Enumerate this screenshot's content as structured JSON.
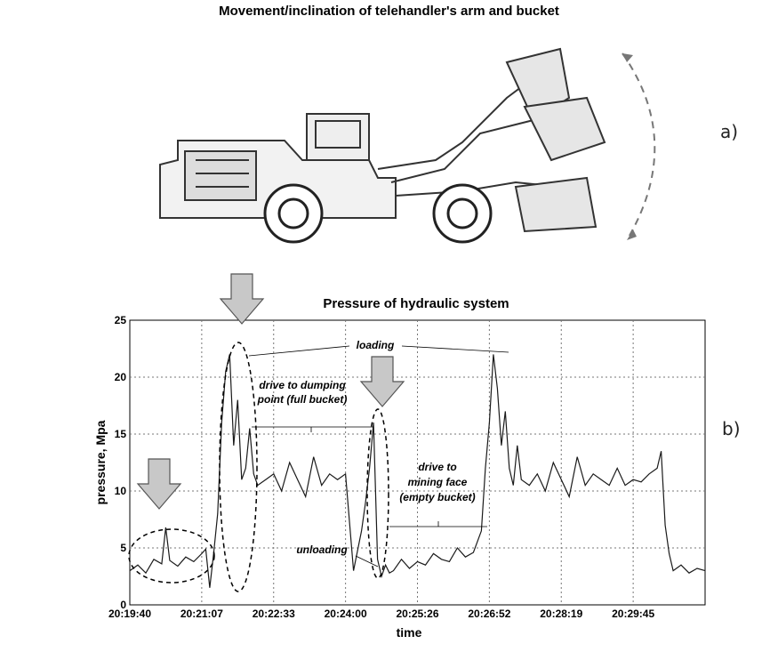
{
  "figure": {
    "top_title": "Movement/inclination of telehandler's arm and bucket",
    "panel_a": "a)",
    "panel_b": "b)"
  },
  "icons": {
    "vehicle": "underground-loader-drawing",
    "arrows": "down-arrow-icon",
    "highlights": "dashed-ellipse"
  },
  "chart_data": {
    "type": "line",
    "title": "Pressure of hydraulic system",
    "xlabel": "time",
    "ylabel": "pressure, Mpa",
    "ylim": [
      0,
      25
    ],
    "yticks": [
      "0",
      "5",
      "10",
      "15",
      "20",
      "25"
    ],
    "xticks": [
      "20:19:40",
      "20:21:07",
      "20:22:33",
      "20:24:00",
      "20:25:26",
      "20:26:52",
      "20:28:19",
      "20:29:45"
    ],
    "xlim_seconds": [
      0,
      720
    ],
    "grid": true,
    "annotations": {
      "loading": "loading",
      "drive_full_1": "drive to dumping",
      "drive_full_2": "point (full bucket)",
      "drive_empty_1": "drive to",
      "drive_empty_2": "mining face",
      "drive_empty_3": "(empty bucket)",
      "unloading": "unloading"
    },
    "series": [
      {
        "color": "#1a1a1a",
        "x": [
          0,
          10,
          20,
          30,
          40,
          45,
          50,
          60,
          70,
          80,
          90,
          95,
          100,
          105,
          110,
          115,
          120,
          125,
          130,
          135,
          140,
          145,
          150,
          155,
          160,
          170,
          180,
          190,
          200,
          210,
          220,
          230,
          240,
          250,
          260,
          270,
          280,
          290,
          295,
          300,
          305,
          310,
          315,
          320,
          325,
          330,
          340,
          350,
          360,
          370,
          380,
          390,
          400,
          410,
          420,
          430,
          440,
          445,
          450,
          455,
          460,
          465,
          470,
          475,
          480,
          485,
          490,
          500,
          510,
          520,
          530,
          540,
          550,
          560,
          570,
          580,
          590,
          600,
          610,
          620,
          630,
          640,
          650,
          660,
          665,
          670,
          675,
          680,
          690,
          700,
          710,
          720
        ],
        "y": [
          3.0,
          3.5,
          2.8,
          4.0,
          3.6,
          6.8,
          3.9,
          3.4,
          4.2,
          3.8,
          4.5,
          4.9,
          1.5,
          4.6,
          8.0,
          16.0,
          20.5,
          22.0,
          14.0,
          18.0,
          11.0,
          12.0,
          15.5,
          11.5,
          10.5,
          11.0,
          11.5,
          10.0,
          12.5,
          11.0,
          9.5,
          13.0,
          10.5,
          11.5,
          11.0,
          11.5,
          3.0,
          6.5,
          9.0,
          12.0,
          16.0,
          4.0,
          2.5,
          3.5,
          2.8,
          3.0,
          4.0,
          3.2,
          3.8,
          3.5,
          4.5,
          4.0,
          3.8,
          5.0,
          4.2,
          4.6,
          6.5,
          12.0,
          16.0,
          22.0,
          19.0,
          14.0,
          17.0,
          12.0,
          10.5,
          14.0,
          11.0,
          10.5,
          11.5,
          10.0,
          12.5,
          11.0,
          9.5,
          13.0,
          10.5,
          11.5,
          11.0,
          10.5,
          12.0,
          10.5,
          11.0,
          10.8,
          11.5,
          12.0,
          13.5,
          7.0,
          4.5,
          3.0,
          3.5,
          2.8,
          3.2,
          3.0
        ]
      }
    ]
  }
}
